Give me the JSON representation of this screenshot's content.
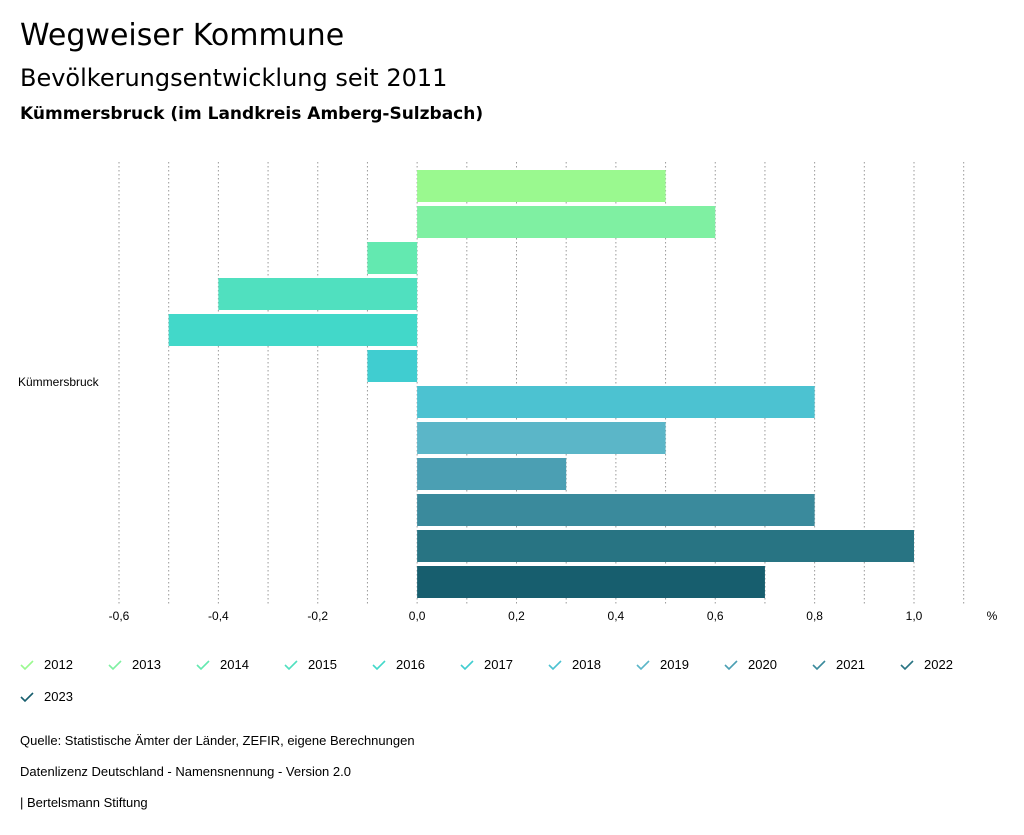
{
  "header": {
    "title": "Wegweiser Kommune",
    "subtitle": "Bevölkerungsentwicklung seit 2011",
    "region": "Kümmersbruck (im Landkreis Amberg-Sulzbach)"
  },
  "chart_data": {
    "type": "bar",
    "orientation": "horizontal",
    "category": "Kümmersbruck",
    "unit": "%",
    "xlim": [
      -0.6,
      1.0
    ],
    "ticks": [
      "-0,6",
      "-0,4",
      "-0,2",
      "0,0",
      "0,2",
      "0,4",
      "0,6",
      "0,8",
      "1,0"
    ],
    "grid": true,
    "legend_position": "bottom",
    "series": [
      {
        "name": "2012",
        "value": 0.5,
        "color": "#9af98f"
      },
      {
        "name": "2013",
        "value": 0.6,
        "color": "#7ff0a2"
      },
      {
        "name": "2014",
        "value": -0.1,
        "color": "#63e9b0"
      },
      {
        "name": "2015",
        "value": -0.4,
        "color": "#50e0bf"
      },
      {
        "name": "2016",
        "value": -0.5,
        "color": "#42d8c9"
      },
      {
        "name": "2017",
        "value": -0.1,
        "color": "#40cdd0"
      },
      {
        "name": "2018",
        "value": 0.8,
        "color": "#4cc2d1"
      },
      {
        "name": "2019",
        "value": 0.5,
        "color": "#5bb6c8"
      },
      {
        "name": "2020",
        "value": 0.3,
        "color": "#4b9fb3"
      },
      {
        "name": "2021",
        "value": 0.8,
        "color": "#3a8a9c"
      },
      {
        "name": "2022",
        "value": 1.0,
        "color": "#287483"
      },
      {
        "name": "2023",
        "value": 0.7,
        "color": "#175e6e"
      }
    ]
  },
  "footer": {
    "source": "Quelle: Statistische Ämter der Länder, ZEFIR, eigene Berechnungen",
    "license": "Datenlizenz Deutschland - Namensnennung - Version 2.0",
    "credit": "| Bertelsmann Stiftung"
  }
}
